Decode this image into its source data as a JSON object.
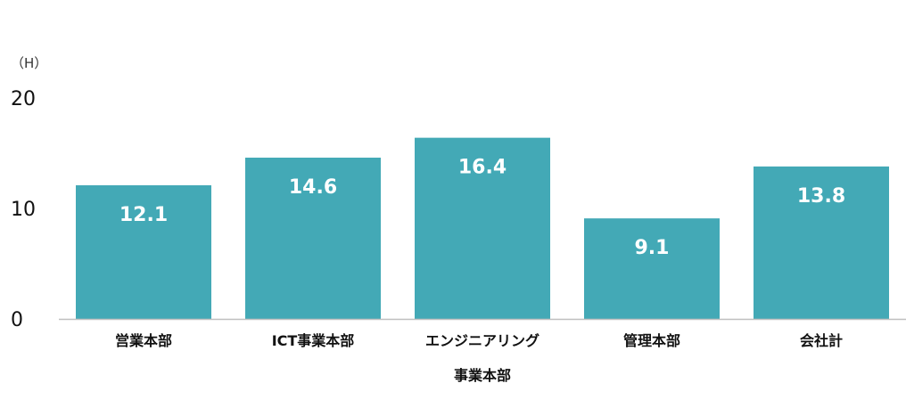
{
  "chart_data": {
    "type": "bar",
    "unit_label": "（H）",
    "categories": [
      "営業本部",
      "ICT事業本部",
      "エンジニアリング",
      "管理本部",
      "会社計"
    ],
    "values": [
      12.1,
      14.6,
      16.4,
      9.1,
      13.8
    ],
    "value_labels": [
      "12.1",
      "14.6",
      "16.4",
      "9.1",
      "13.8"
    ],
    "xlabel": "事業本部",
    "ylabel": "",
    "ylim": [
      0,
      20
    ],
    "yticks": [
      0,
      10,
      20
    ],
    "ytick_labels": [
      "0",
      "10",
      "20"
    ],
    "grid": false,
    "bar_color": "#43A9B6",
    "axis_color": "#BFBFBF"
  }
}
